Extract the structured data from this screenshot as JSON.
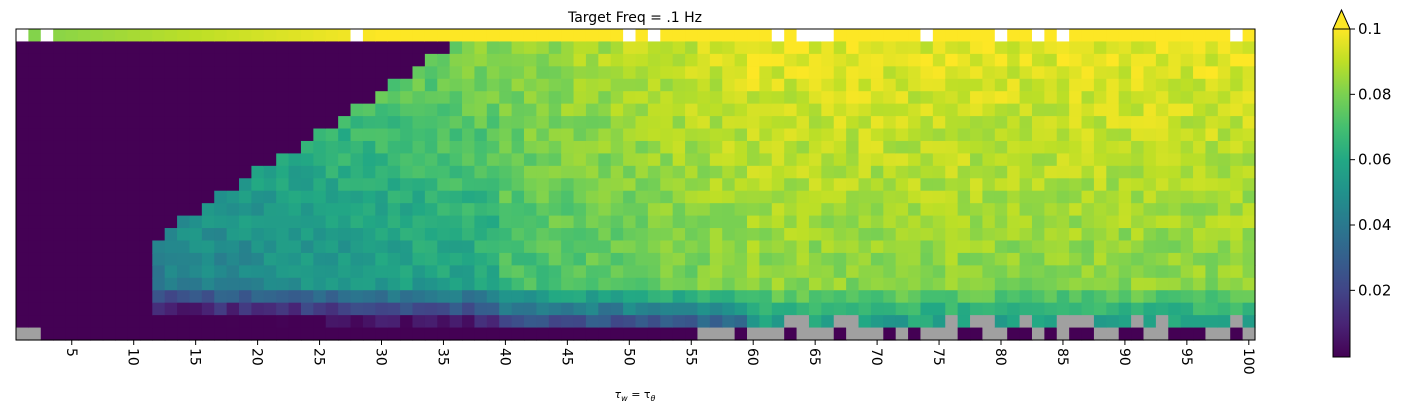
{
  "chart_data": {
    "type": "heatmap",
    "title": "Target Freq = .1 Hz",
    "xlabel": "τw = τθ",
    "xlabel_main": "τ",
    "xlabel_sub_w": "w",
    "xlabel_eq": " = τ",
    "xlabel_sub_theta": "θ",
    "ylabel": "",
    "x_range": [
      1,
      100
    ],
    "n_rows": 25,
    "x_ticks": [
      "5",
      "10",
      "15",
      "20",
      "25",
      "30",
      "35",
      "40",
      "45",
      "50",
      "55",
      "60",
      "65",
      "70",
      "75",
      "80",
      "85",
      "90",
      "95",
      "100"
    ],
    "x_tick_values": [
      5,
      10,
      15,
      20,
      25,
      30,
      35,
      40,
      45,
      50,
      55,
      60,
      65,
      70,
      75,
      80,
      85,
      90,
      95,
      100
    ],
    "colorbar": {
      "colormap": "viridis",
      "vmin": 0.0,
      "vmax": 0.1,
      "extend": "max",
      "ticks": [
        "0.02",
        "0.04",
        "0.06",
        "0.08",
        "0.1"
      ],
      "tick_values": [
        0.02,
        0.04,
        0.06,
        0.08,
        0.1
      ]
    },
    "missing_color": "#ffffff",
    "masked_color": "#a0a0a0",
    "note_values": "cell values approximate: 0 at low tau / low rows, rising to ~0.09-0.1 in upper right; gray cells in bottom rows for tau > 55"
  },
  "colors": {
    "low": "#440154",
    "high": "#fde725",
    "gray": "#a0a0a0"
  }
}
